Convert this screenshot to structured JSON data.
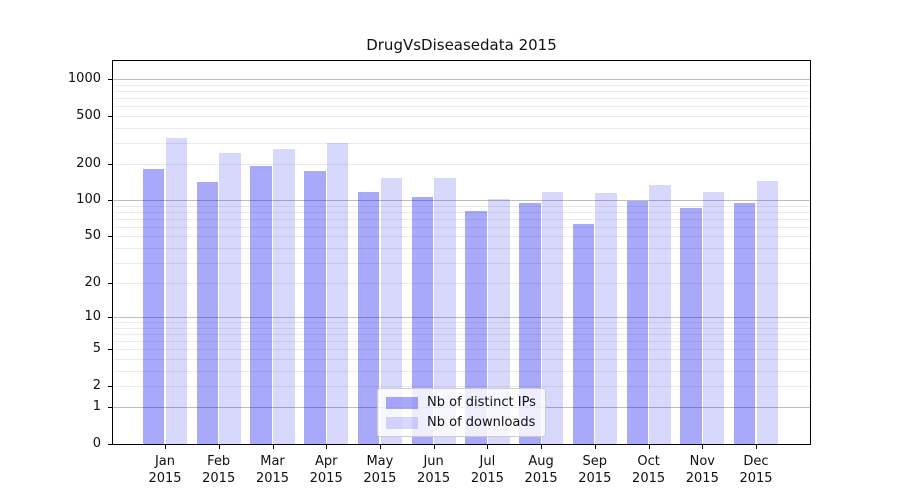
{
  "title": "DrugVsDiseasedata 2015",
  "chart_data": {
    "type": "bar",
    "title": "DrugVsDiseasedata 2015",
    "categories": [
      "Jan 2015",
      "Feb 2015",
      "Mar 2015",
      "Apr 2015",
      "May 2015",
      "Jun 2015",
      "Jul 2015",
      "Aug 2015",
      "Sep 2015",
      "Oct 2015",
      "Nov 2015",
      "Dec 2015"
    ],
    "series": [
      {
        "name": "Nb of distinct IPs",
        "color": "rgba(10,10,240,0.35)",
        "values": [
          182,
          143,
          194,
          174,
          118,
          107,
          82,
          95,
          64,
          98,
          86,
          95
        ]
      },
      {
        "name": "Nb of downloads",
        "color": "rgba(10,10,240,0.16)",
        "values": [
          326,
          246,
          266,
          301,
          154,
          152,
          102,
          118,
          115,
          134,
          117,
          146
        ]
      }
    ],
    "xlabel": "",
    "ylabel": "",
    "yscale": "symlog (position proportional to ln(1+v))",
    "ytick_labels": [
      "1000",
      "500",
      "200",
      "100",
      "50",
      "20",
      "10",
      "5",
      "2",
      "1",
      "0"
    ],
    "ytick_values": [
      1000,
      500,
      200,
      100,
      50,
      20,
      10,
      5,
      2,
      1,
      0
    ],
    "ylim": [
      0,
      1414
    ],
    "major_grid_values": [
      1,
      10,
      100,
      1000
    ],
    "grid": "horizontal major + minor log gridlines",
    "legend_position": "lower center"
  },
  "legend": {
    "items": [
      {
        "label": "Nb of distinct IPs",
        "color": "rgba(10,10,240,0.35)"
      },
      {
        "label": "Nb of downloads",
        "color": "rgba(10,10,240,0.16)"
      }
    ]
  },
  "colors": {
    "background": "#ffffff",
    "axis": "#000000",
    "text": "#111111",
    "major_grid": "#bdbdbd",
    "minor_grid": "#ebebeb",
    "legend_border": "#cccccc",
    "legend_bg": "rgba(255,255,255,0.8)",
    "bar_distinct_ips": "rgba(10,10,240,0.35)",
    "bar_downloads": "rgba(10,10,240,0.16)"
  }
}
